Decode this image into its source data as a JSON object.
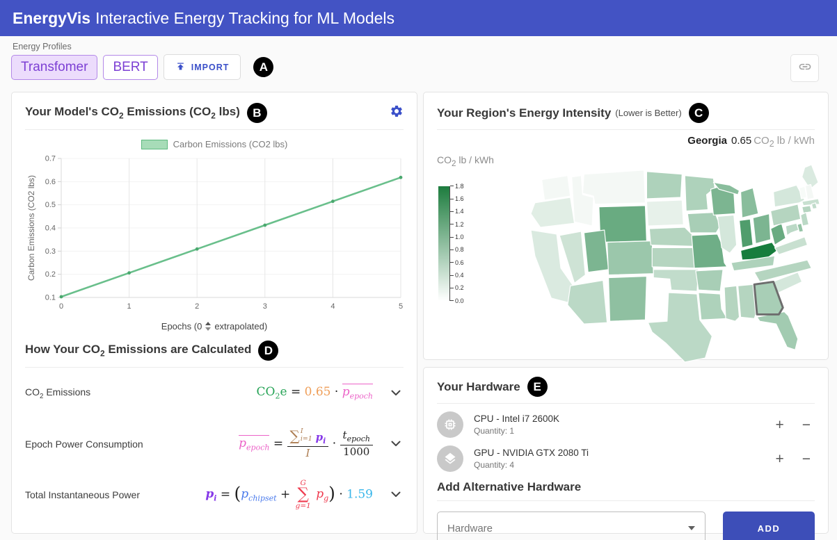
{
  "colors": {
    "header_bg": "#4353c4",
    "accent": "#3b50c9",
    "profile_purple": "#7c3fd4",
    "profile_border": "#b388e8",
    "profile_bg": "#ecdcfc",
    "chart_line": "#69bf8b",
    "legend_fill": "#a7dcb8",
    "legend_border": "#5cb97f",
    "scale_max": "#1d7c3e",
    "scale_min": "#ffffff",
    "add_button": "#3d4eb8",
    "f_green": "#27a457",
    "f_orange": "#ef9e58",
    "f_pink": "#ec63c8",
    "f_purple": "#8639e8",
    "f_tan": "#ad7d52",
    "f_blue": "#4b7bec",
    "f_red": "#ef3b4f",
    "f_cyan": "#38b6ea"
  },
  "icons": {
    "import": "upload-publish-arrow",
    "share": "chain-link",
    "settings": "gear",
    "cpu": "memory-chip",
    "gpu": "layers",
    "increase": "+",
    "decrease": "−",
    "expand": "chevron-down",
    "dropdown": "caret-down",
    "epoch_spinner": "up-down-stepper"
  },
  "header": {
    "brand": "EnergyVis",
    "title_rest": "Interactive Energy Tracking for ML Models"
  },
  "profiles": {
    "section_label": "Energy Profiles",
    "transformer": "Transfomer",
    "bert": "BERT",
    "import_label": "IMPORT",
    "marker": "A"
  },
  "emissions": {
    "marker": "B",
    "title": {
      "t1": "Your Model's CO",
      "s1": "2",
      "t2": " Emissions (CO",
      "s2": "2",
      "t3": " lbs)"
    },
    "legend_label": "Carbon Emissions (CO2 lbs)",
    "xlabel_pre": "Epochs (0",
    "xlabel_post": "extrapolated)"
  },
  "chart_data": [
    {
      "type": "line",
      "title": "Your Model's CO2 Emissions (CO2 lbs)",
      "x": [
        0,
        1,
        2,
        3,
        4,
        5
      ],
      "series": [
        {
          "name": "Carbon Emissions (CO2 lbs)",
          "values": [
            0.103,
            0.206,
            0.309,
            0.412,
            0.515,
            0.618
          ]
        }
      ],
      "xlabel": "Epochs (0 ↕ extrapolated)",
      "ylabel": "Carbon Emissions (CO2 lbs)",
      "xlim": [
        0,
        5
      ],
      "ylim": [
        0.1,
        0.7
      ],
      "xticks": [
        0,
        1,
        2,
        3,
        4,
        5
      ],
      "yticks": [
        0.1,
        0.2,
        0.3,
        0.4,
        0.5,
        0.6,
        0.7
      ],
      "grid": "vertical",
      "legend_position": "top",
      "line_color": "#69bf8b"
    },
    {
      "type": "heatmap",
      "subtype": "us-state-choropleth",
      "title": "Your Region's Energy Intensity (Lower is Better)",
      "unit": "CO2 lb / kWh",
      "scale": {
        "min": 0.0,
        "max": 1.8
      },
      "highlight": "GA",
      "states": [
        {
          "id": "WA",
          "v": 0.05
        },
        {
          "id": "OR",
          "v": 0.2
        },
        {
          "id": "CA",
          "v": 0.25
        },
        {
          "id": "ID",
          "v": 0.05
        },
        {
          "id": "MT",
          "v": 0.05
        },
        {
          "id": "NV",
          "v": 0.35
        },
        {
          "id": "UT",
          "v": 1.0
        },
        {
          "id": "WY",
          "v": 1.15
        },
        {
          "id": "CO",
          "v": 0.75
        },
        {
          "id": "AZ",
          "v": 0.5
        },
        {
          "id": "NM",
          "v": 0.85
        },
        {
          "id": "ND",
          "v": 0.6
        },
        {
          "id": "SD",
          "v": 0.15
        },
        {
          "id": "NE",
          "v": 0.55
        },
        {
          "id": "KS",
          "v": 0.55
        },
        {
          "id": "OK",
          "v": 0.45
        },
        {
          "id": "TX",
          "v": 0.5
        },
        {
          "id": "MN",
          "v": 0.6
        },
        {
          "id": "IA",
          "v": 0.65
        },
        {
          "id": "MO",
          "v": 1.1
        },
        {
          "id": "AR",
          "v": 0.65
        },
        {
          "id": "LA",
          "v": 0.6
        },
        {
          "id": "WI",
          "v": 1.0
        },
        {
          "id": "IL",
          "v": 0.3
        },
        {
          "id": "MIU",
          "v": 0.9
        },
        {
          "id": "MI",
          "v": 0.9
        },
        {
          "id": "IN",
          "v": 1.35
        },
        {
          "id": "OH",
          "v": 1.0
        },
        {
          "id": "KY",
          "v": 1.8
        },
        {
          "id": "TN",
          "v": 0.6
        },
        {
          "id": "MS",
          "v": 0.55
        },
        {
          "id": "AL",
          "v": 0.55
        },
        {
          "id": "GA",
          "v": 0.65
        },
        {
          "id": "FL",
          "v": 0.7
        },
        {
          "id": "SC",
          "v": 0.3
        },
        {
          "id": "NC",
          "v": 0.55
        },
        {
          "id": "VA",
          "v": 0.4
        },
        {
          "id": "WV",
          "v": 1.15
        },
        {
          "id": "MD",
          "v": 0.5
        },
        {
          "id": "DE",
          "v": 0.8
        },
        {
          "id": "NJ",
          "v": 0.5
        },
        {
          "id": "PA",
          "v": 0.55
        },
        {
          "id": "NY",
          "v": 0.3
        },
        {
          "id": "CT",
          "v": 0.55
        },
        {
          "id": "RI",
          "v": 0.45
        },
        {
          "id": "MA",
          "v": 0.4
        },
        {
          "id": "VT",
          "v": 0.02
        },
        {
          "id": "NH",
          "v": 0.05
        },
        {
          "id": "ME",
          "v": 0.25
        }
      ]
    }
  ],
  "calc": {
    "marker": "D",
    "title": {
      "t1": "How Your CO",
      "s1": "2",
      "t2": " Emissions are Calculated"
    },
    "row1": {
      "label": {
        "t1": "CO",
        "s1": "2",
        "t2": " Emissions"
      },
      "lhs_main": "CO",
      "lhs_sub": "2",
      "lhs_tail": "e",
      "eq": "=",
      "coef": "0.65",
      "cdot": "·",
      "p": "p",
      "p_sub": "epoch"
    },
    "row2": {
      "label": "Epoch Power Consumption",
      "lhs": "p",
      "lhs_sub": "epoch",
      "eq": "=",
      "sum": "∑",
      "sum_sup": "I",
      "sum_sub": "i=1",
      "pi": "p",
      "pi_sub": "i",
      "den": "I",
      "cdot": "·",
      "t": "t",
      "t_sub": "epoch",
      "t_den": "1000"
    },
    "row3": {
      "label": "Total Instantaneous Power",
      "lhs": "p",
      "lhs_sub": "i",
      "eq": "=",
      "open": "(",
      "pc": "p",
      "pc_sub": "chipset",
      "plus": "+",
      "sum": "∑",
      "sum_sup": "G",
      "sum_sub": "g=1",
      "pg": "p",
      "pg_sub": "g",
      "close": ")",
      "cdot": "·",
      "factor": "1.59"
    }
  },
  "region": {
    "marker": "C",
    "title": "Your Region's Energy Intensity",
    "note": "(Lower is Better)",
    "selected": {
      "name": "Georgia",
      "value": "0.65",
      "u1": "CO",
      "u2": "2",
      "u3": " lb / kWh"
    },
    "scale": {
      "l1": "CO",
      "l2": "2",
      "l3": " lb / kWh",
      "ticks": [
        "1.8",
        "1.6",
        "1.4",
        "1.2",
        "1.0",
        "0.8",
        "0.6",
        "0.4",
        "0.2",
        "0.0"
      ]
    }
  },
  "hardware": {
    "marker": "E",
    "title": "Your Hardware",
    "items": [
      {
        "name": "CPU - Intel i7 2600K",
        "quantity": "Quantity: 1",
        "icon": "cpu-icon"
      },
      {
        "name": "GPU - NVIDIA GTX 2080 Ti",
        "quantity": "Quantity: 4",
        "icon": "gpu-layers-icon"
      }
    ],
    "add": {
      "title": "Add Alternative Hardware",
      "placeholder": "Hardware",
      "button": "ADD"
    }
  }
}
